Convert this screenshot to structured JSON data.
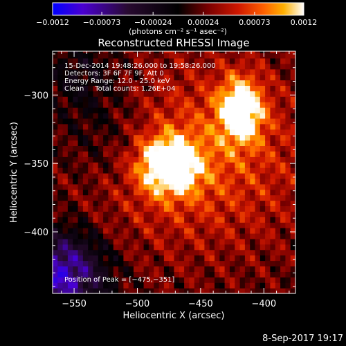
{
  "chart_data": {
    "type": "heatmap",
    "title": "Reconstructed RHESSI Image",
    "xlabel": "Heliocentric X (arcsec)",
    "ylabel": "Heliocentric Y (arcsec)",
    "xlim": [
      -567,
      -375
    ],
    "ylim": [
      -445,
      -268
    ],
    "xticks": [
      -550,
      -500,
      -450,
      -400
    ],
    "yticks": [
      -300,
      -350,
      -400
    ],
    "xtick_labels": [
      "−550",
      "−500",
      "−450",
      "−400"
    ],
    "ytick_labels": [
      "−300",
      "−350",
      "−400"
    ],
    "grid": false,
    "colorbar": {
      "range": [
        -0.0012,
        0.0012
      ],
      "ticks": [
        -0.0012,
        -0.00073,
        -0.00024,
        0.00024,
        0.00073,
        0.0012
      ],
      "tick_labels": [
        "−0.0012",
        "−0.00073",
        "−0.00024",
        "0.00024",
        "0.00073",
        "0.0012"
      ],
      "units": "(photons cm⁻² s⁻¹ asec⁻²)",
      "colormap": [
        "#0000ff",
        "#5a00c8",
        "#2a0a2a",
        "#000000",
        "#6a0000",
        "#c81400",
        "#ff5000",
        "#ff9a00",
        "#ffe080",
        "#ffffff"
      ]
    },
    "sources": [
      {
        "x": -475,
        "y": -351,
        "peak": 0.0012
      },
      {
        "x": -418,
        "y": -310,
        "peak": 0.0011
      }
    ],
    "annotations": [
      "15-Dec-2014 19:48:26.000 to 19:58:26.000",
      "Detectors: 3F 6F 7F 9F, Att 0",
      "Energy Range: 12.0 - 25.0 keV",
      "Clean     Total counts: 1.26E+04"
    ],
    "peak_label": "Position of Peak = [−475,−351]"
  },
  "footer": {
    "timestamp": "8-Sep-2017 19:17"
  }
}
